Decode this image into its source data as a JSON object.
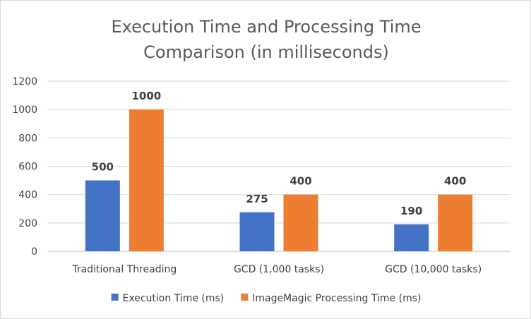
{
  "chart_data": {
    "type": "bar",
    "title_lines": [
      "Execution Time and Processing Time",
      "Comparison (in milliseconds)"
    ],
    "categories": [
      "Traditional Threading",
      "GCD (1,000 tasks)",
      "GCD (10,000 tasks)"
    ],
    "series": [
      {
        "name": "Execution Time (ms)",
        "values": [
          500,
          275,
          190
        ],
        "color": "#4472C4"
      },
      {
        "name": "ImageMagic Processing Time (ms)",
        "values": [
          1000,
          400,
          400
        ],
        "color": "#ED7D31"
      }
    ],
    "ylim": [
      0,
      1200
    ],
    "yticks": [
      0,
      200,
      400,
      600,
      800,
      1000,
      1200
    ],
    "grid": true,
    "legend_position": "bottom",
    "data_labels": true,
    "xlabel": "",
    "ylabel": ""
  },
  "colors": {
    "gridline": "#d9d9d9",
    "axis": "#bfbfbf"
  }
}
